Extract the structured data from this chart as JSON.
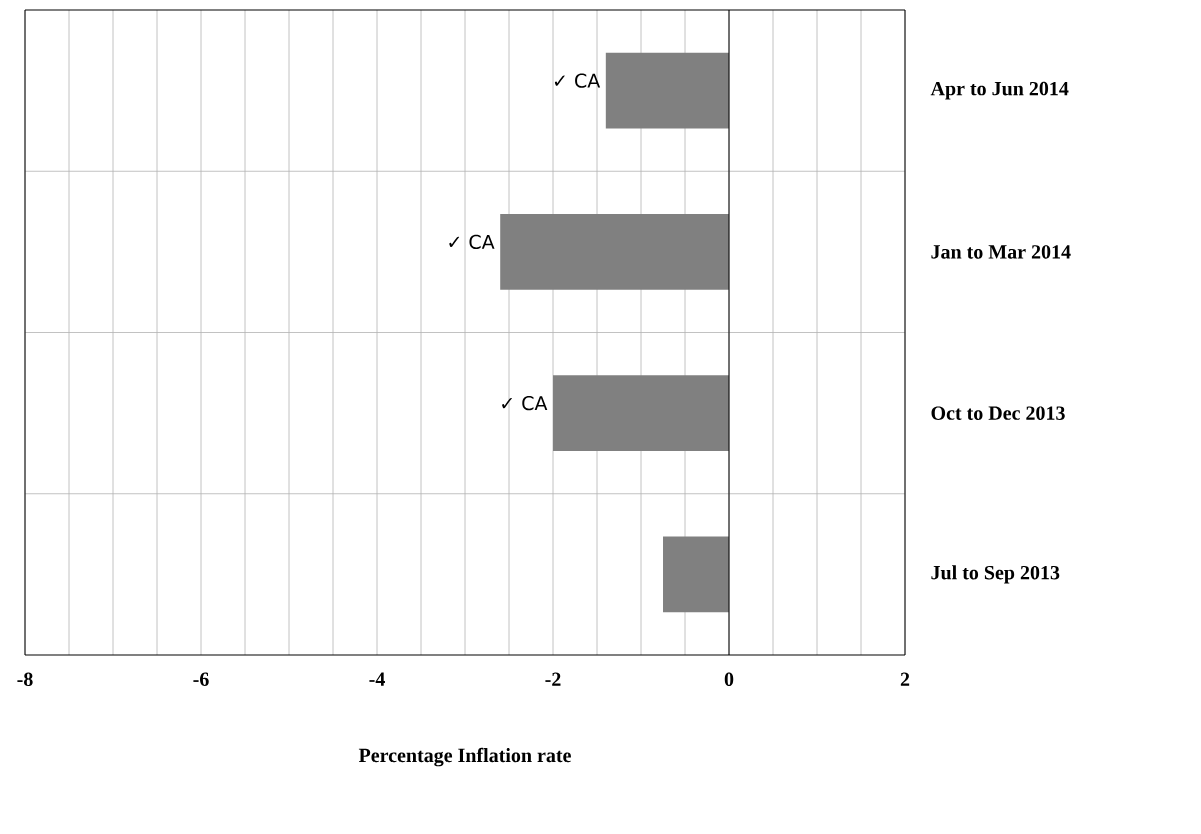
{
  "chart_data": {
    "type": "bar",
    "orientation": "horizontal",
    "xlabel": "Percentage Inflation rate",
    "categories": [
      "Apr to Jun 2014",
      "Jan to Mar 2014",
      "Oct to Dec 2013",
      "Jul to Sep 2013"
    ],
    "values": [
      -1.4,
      -2.6,
      -2.0,
      -0.75
    ],
    "color": "#808080",
    "xlim": [
      -8,
      2
    ],
    "xticks": [
      -8,
      {
        "value": -7.5,
        "label": null
      },
      {
        "value": -7,
        "label": null
      },
      {
        "value": -6.5,
        "label": null
      },
      -6,
      {
        "value": -5.5,
        "label": null
      },
      {
        "value": -5,
        "label": null
      },
      {
        "value": -4.5,
        "label": null
      },
      -4,
      {
        "value": -3.5,
        "label": null
      },
      {
        "value": -3,
        "label": null
      },
      {
        "value": -2.5,
        "label": null
      },
      -2,
      {
        "value": -1.5,
        "label": null
      },
      {
        "value": -1,
        "label": null
      },
      {
        "value": -0.5,
        "label": null
      },
      0,
      {
        "value": 0.5,
        "label": null
      },
      {
        "value": 1,
        "label": null
      },
      {
        "value": 1.5,
        "label": null
      },
      2
    ],
    "grid": true,
    "annotations": [
      {
        "text": "✓ CA",
        "x": -1.4,
        "y": "Apr to Jun 2014"
      },
      {
        "text": "✓ CA",
        "x": -2.6,
        "y": "Jan to Mar 2014"
      },
      {
        "text": "✓ CA",
        "x": -2.0,
        "y": "Oct to Dec 2013"
      }
    ]
  }
}
